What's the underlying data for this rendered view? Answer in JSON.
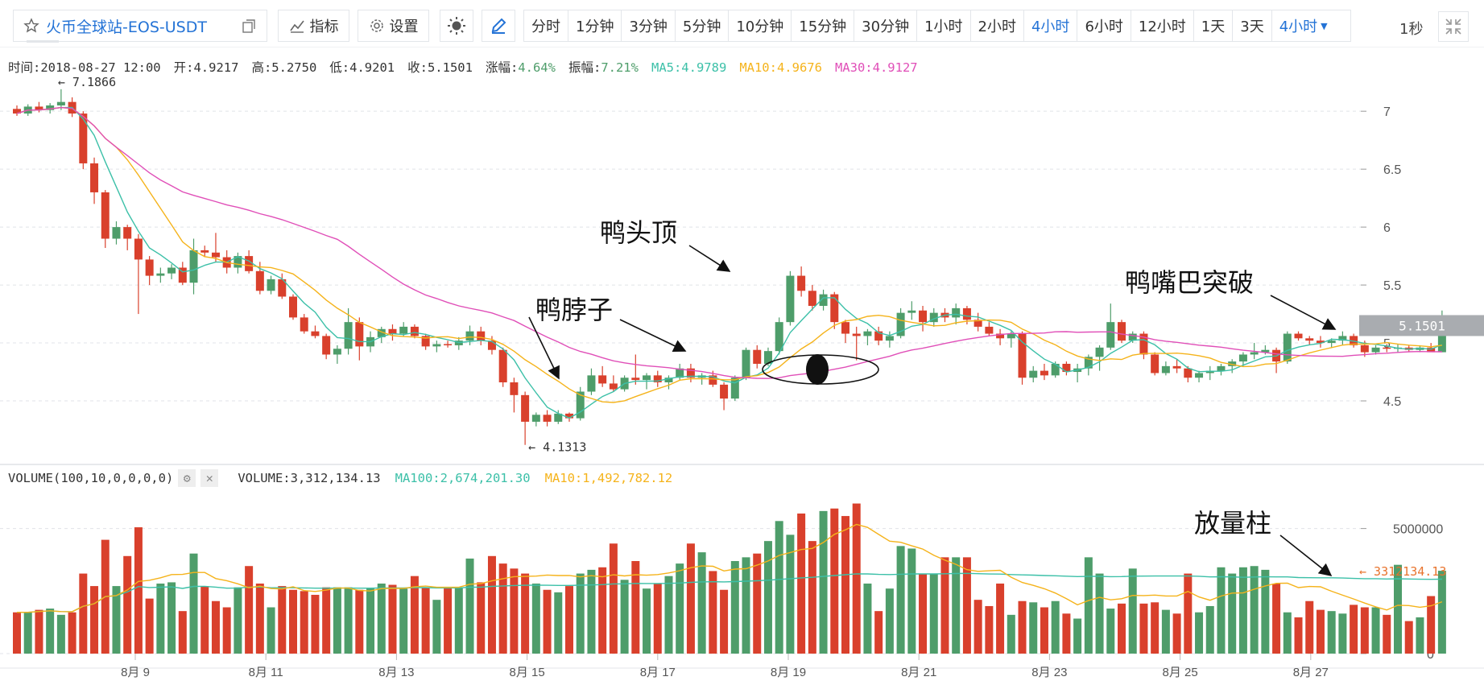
{
  "toolbar": {
    "symbol": "火币全球站-EOS-USDT",
    "indicator_label": "指标",
    "settings_label": "设置",
    "periods": [
      "分时",
      "1分钟",
      "3分钟",
      "5分钟",
      "10分钟",
      "15分钟",
      "30分钟",
      "1小时",
      "2小时",
      "4小时",
      "6小时",
      "12小时",
      "1天",
      "3天"
    ],
    "active_period": "4小时",
    "dropdown_label": "4小时",
    "refresh": "1秒"
  },
  "info": {
    "time": "时间:2018-08-27 12:00",
    "open": "开:4.9217",
    "high": "高:5.2750",
    "low": "低:4.9201",
    "close": "收:5.1501",
    "change_label": "涨幅:",
    "change_value": "4.64%",
    "amp_label": "振幅:",
    "amp_value": "7.21%",
    "ma5": "MA5:4.9789",
    "ma10": "MA10:4.9676",
    "ma30": "MA30:4.9127"
  },
  "volume_info": {
    "title": "VOLUME(100,10,0,0,0,0)",
    "volume": "VOLUME:3,312,134.13",
    "ma100": "MA100:2,674,201.30",
    "ma10": "MA10:1,492,782.12"
  },
  "colors": {
    "up": "#4e9d6a",
    "down": "#d9402c",
    "ma5": "#3cc0a8",
    "ma10": "#f5b31b",
    "ma30": "#e04fb8",
    "vma100": "#3cc0a8",
    "vma10": "#f5b31b",
    "accent": "#2473d6"
  },
  "chart_data": {
    "type": "candlestick",
    "price_axis": {
      "ticks": [
        "7",
        "6.5",
        "6",
        "5.5",
        "5",
        "4.5"
      ],
      "range": [
        4.0,
        7.3
      ]
    },
    "volume_axis": {
      "ticks": [
        "5000000",
        "0"
      ],
      "range": [
        0,
        6500000
      ]
    },
    "x_tick_labels": [
      "8月 9",
      "8月 11",
      "8月 13",
      "8月 15",
      "8月 17",
      "8月 19",
      "8月 21",
      "8月 23",
      "8月 25",
      "8月 27"
    ],
    "high_marker": "← 7.1866",
    "low_marker": "← 4.1313",
    "last_price": "5.1501",
    "last_volume": "← 3312134.13",
    "annotations": [
      "鸭头顶",
      "鸭脖子",
      "鸭嘴巴突破",
      "放量柱"
    ],
    "ohlc": [
      [
        7.02,
        7.05,
        6.96,
        6.98
      ],
      [
        6.98,
        7.06,
        6.96,
        7.04
      ],
      [
        7.04,
        7.08,
        6.99,
        7.01
      ],
      [
        7.01,
        7.07,
        6.98,
        7.05
      ],
      [
        7.05,
        7.19,
        7.01,
        7.08
      ],
      [
        7.08,
        7.12,
        6.95,
        6.98
      ],
      [
        6.98,
        7.0,
        6.5,
        6.55
      ],
      [
        6.55,
        6.6,
        6.2,
        6.3
      ],
      [
        6.3,
        6.32,
        5.82,
        5.9
      ],
      [
        5.9,
        6.05,
        5.85,
        6.0
      ],
      [
        6.0,
        6.02,
        5.8,
        5.9
      ],
      [
        5.9,
        5.94,
        5.25,
        5.72
      ],
      [
        5.72,
        5.75,
        5.5,
        5.58
      ],
      [
        5.58,
        5.65,
        5.52,
        5.6
      ],
      [
        5.6,
        5.68,
        5.55,
        5.65
      ],
      [
        5.65,
        5.7,
        5.5,
        5.52
      ],
      [
        5.52,
        5.9,
        5.42,
        5.8
      ],
      [
        5.8,
        5.84,
        5.74,
        5.78
      ],
      [
        5.78,
        5.95,
        5.7,
        5.74
      ],
      [
        5.74,
        5.8,
        5.6,
        5.65
      ],
      [
        5.65,
        5.78,
        5.6,
        5.75
      ],
      [
        5.75,
        5.8,
        5.6,
        5.62
      ],
      [
        5.62,
        5.7,
        5.42,
        5.45
      ],
      [
        5.45,
        5.58,
        5.42,
        5.55
      ],
      [
        5.55,
        5.6,
        5.38,
        5.4
      ],
      [
        5.4,
        5.42,
        5.2,
        5.22
      ],
      [
        5.22,
        5.25,
        5.08,
        5.1
      ],
      [
        5.1,
        5.15,
        5.04,
        5.06
      ],
      [
        5.06,
        5.08,
        4.86,
        4.9
      ],
      [
        4.9,
        4.98,
        4.82,
        4.95
      ],
      [
        4.95,
        5.3,
        4.9,
        5.18
      ],
      [
        5.18,
        5.22,
        4.85,
        4.97
      ],
      [
        4.97,
        5.1,
        4.92,
        5.05
      ],
      [
        5.05,
        5.14,
        5.0,
        5.12
      ],
      [
        5.12,
        5.16,
        5.02,
        5.08
      ],
      [
        5.08,
        5.18,
        5.06,
        5.14
      ],
      [
        5.14,
        5.16,
        5.04,
        5.06
      ],
      [
        5.06,
        5.08,
        4.94,
        4.97
      ],
      [
        4.97,
        5.02,
        4.92,
        4.99
      ],
      [
        4.99,
        5.02,
        4.96,
        4.98
      ],
      [
        4.98,
        5.05,
        4.94,
        5.02
      ],
      [
        5.02,
        5.15,
        4.98,
        5.1
      ],
      [
        5.1,
        5.14,
        4.98,
        5.02
      ],
      [
        5.02,
        5.06,
        4.9,
        4.94
      ],
      [
        4.94,
        4.96,
        4.62,
        4.66
      ],
      [
        4.66,
        4.7,
        4.4,
        4.55
      ],
      [
        4.55,
        4.58,
        4.12,
        4.32
      ],
      [
        4.32,
        4.4,
        4.28,
        4.38
      ],
      [
        4.38,
        4.42,
        4.28,
        4.32
      ],
      [
        4.32,
        4.42,
        4.3,
        4.39
      ],
      [
        4.39,
        4.4,
        4.32,
        4.35
      ],
      [
        4.35,
        4.62,
        4.33,
        4.58
      ],
      [
        4.58,
        4.78,
        4.55,
        4.72
      ],
      [
        4.72,
        4.8,
        4.62,
        4.65
      ],
      [
        4.65,
        4.72,
        4.58,
        4.6
      ],
      [
        4.6,
        4.72,
        4.58,
        4.7
      ],
      [
        4.7,
        4.9,
        4.64,
        4.68
      ],
      [
        4.68,
        4.74,
        4.6,
        4.72
      ],
      [
        4.72,
        4.76,
        4.62,
        4.66
      ],
      [
        4.66,
        4.72,
        4.6,
        4.7
      ],
      [
        4.7,
        4.82,
        4.68,
        4.78
      ],
      [
        4.78,
        4.82,
        4.66,
        4.7
      ],
      [
        4.7,
        4.74,
        4.64,
        4.72
      ],
      [
        4.72,
        4.76,
        4.62,
        4.64
      ],
      [
        4.64,
        4.66,
        4.42,
        4.52
      ],
      [
        4.52,
        4.72,
        4.5,
        4.7
      ],
      [
        4.7,
        4.96,
        4.68,
        4.94
      ],
      [
        4.94,
        4.98,
        4.78,
        4.82
      ],
      [
        4.82,
        4.96,
        4.8,
        4.93
      ],
      [
        4.93,
        5.22,
        4.9,
        5.18
      ],
      [
        5.18,
        5.62,
        5.15,
        5.58
      ],
      [
        5.58,
        5.66,
        5.4,
        5.45
      ],
      [
        5.45,
        5.5,
        5.28,
        5.32
      ],
      [
        5.32,
        5.46,
        5.28,
        5.42
      ],
      [
        5.42,
        5.44,
        5.12,
        5.18
      ],
      [
        5.18,
        5.2,
        5.0,
        5.08
      ],
      [
        5.08,
        5.14,
        4.85,
        5.06
      ],
      [
        5.06,
        5.12,
        4.98,
        5.1
      ],
      [
        5.1,
        5.14,
        4.98,
        5.02
      ],
      [
        5.02,
        5.1,
        4.96,
        5.06
      ],
      [
        5.06,
        5.3,
        5.04,
        5.26
      ],
      [
        5.26,
        5.36,
        5.2,
        5.28
      ],
      [
        5.28,
        5.32,
        5.1,
        5.18
      ],
      [
        5.18,
        5.3,
        5.14,
        5.26
      ],
      [
        5.26,
        5.3,
        5.18,
        5.22
      ],
      [
        5.22,
        5.34,
        5.16,
        5.3
      ],
      [
        5.3,
        5.32,
        5.16,
        5.2
      ],
      [
        5.2,
        5.26,
        5.1,
        5.14
      ],
      [
        5.14,
        5.18,
        5.06,
        5.08
      ],
      [
        5.08,
        5.12,
        4.98,
        5.04
      ],
      [
        5.04,
        5.1,
        4.96,
        5.08
      ],
      [
        5.08,
        5.1,
        4.64,
        4.7
      ],
      [
        4.7,
        4.8,
        4.66,
        4.76
      ],
      [
        4.76,
        4.82,
        4.68,
        4.72
      ],
      [
        4.72,
        4.84,
        4.7,
        4.82
      ],
      [
        4.82,
        4.84,
        4.72,
        4.75
      ],
      [
        4.75,
        4.82,
        4.66,
        4.78
      ],
      [
        4.78,
        4.9,
        4.72,
        4.88
      ],
      [
        4.88,
        4.98,
        4.76,
        4.96
      ],
      [
        4.96,
        5.34,
        4.94,
        5.18
      ],
      [
        5.18,
        5.2,
        5.0,
        5.02
      ],
      [
        5.02,
        5.1,
        5.0,
        5.08
      ],
      [
        5.08,
        5.1,
        4.86,
        4.9
      ],
      [
        4.9,
        4.92,
        4.72,
        4.74
      ],
      [
        4.74,
        4.84,
        4.72,
        4.8
      ],
      [
        4.8,
        4.86,
        4.74,
        4.78
      ],
      [
        4.78,
        4.8,
        4.66,
        4.7
      ],
      [
        4.7,
        4.76,
        4.66,
        4.74
      ],
      [
        4.74,
        4.8,
        4.68,
        4.76
      ],
      [
        4.76,
        4.82,
        4.72,
        4.8
      ],
      [
        4.8,
        4.86,
        4.74,
        4.84
      ],
      [
        4.84,
        4.92,
        4.8,
        4.9
      ],
      [
        4.9,
        5.0,
        4.86,
        4.92
      ],
      [
        4.92,
        4.98,
        4.9,
        4.94
      ],
      [
        4.94,
        4.96,
        4.74,
        4.84
      ],
      [
        4.84,
        5.1,
        4.82,
        5.08
      ],
      [
        5.08,
        5.1,
        5.02,
        5.04
      ],
      [
        5.04,
        5.06,
        4.98,
        5.02
      ],
      [
        5.02,
        5.06,
        4.96,
        5.0
      ],
      [
        5.0,
        5.04,
        4.96,
        5.02
      ],
      [
        5.02,
        5.1,
        4.98,
        5.06
      ],
      [
        5.06,
        5.08,
        4.96,
        4.98
      ],
      [
        4.98,
        5.02,
        4.88,
        4.92
      ],
      [
        4.92,
        4.98,
        4.9,
        4.96
      ],
      [
        4.96,
        4.99,
        4.92,
        4.95
      ],
      [
        4.95,
        4.99,
        4.92,
        4.96
      ],
      [
        4.96,
        4.98,
        4.92,
        4.94
      ],
      [
        4.94,
        4.98,
        4.92,
        4.96
      ],
      [
        4.96,
        5.0,
        4.93,
        4.92
      ],
      [
        4.92,
        5.28,
        4.92,
        5.15
      ]
    ],
    "volume": [
      1650000,
      1650000,
      1750000,
      1800000,
      1550000,
      1650000,
      3200000,
      2700000,
      4550000,
      2700000,
      3900000,
      5050000,
      2200000,
      2800000,
      2850000,
      1700000,
      4000000,
      2700000,
      2100000,
      1850000,
      2650000,
      3500000,
      2800000,
      1850000,
      2700000,
      2550000,
      2500000,
      2350000,
      2650000,
      2650000,
      2650000,
      2550000,
      2600000,
      2800000,
      2750000,
      2600000,
      3100000,
      2650000,
      2150000,
      2650000,
      2650000,
      3800000,
      2850000,
      3900000,
      3600000,
      3400000,
      3200000,
      2800000,
      2550000,
      2450000,
      2700000,
      3200000,
      3350000,
      3450000,
      4400000,
      2950000,
      3700000,
      2600000,
      2800000,
      3100000,
      3600000,
      4400000,
      4050000,
      3300000,
      2550000,
      3700000,
      3850000,
      4000000,
      4500000,
      5300000,
      4750000,
      5600000,
      4500000,
      5700000,
      5800000,
      5500000,
      6000000,
      2800000,
      1700000,
      2600000,
      4300000,
      4200000,
      3200000,
      3200000,
      3850000,
      3850000,
      3850000,
      2150000,
      1900000,
      2800000,
      1550000,
      2100000,
      2050000,
      1850000,
      2100000,
      1600000,
      1400000,
      3850000,
      3200000,
      1800000,
      2000000,
      3400000,
      2000000,
      2050000,
      1750000,
      1600000,
      3200000,
      1650000,
      1900000,
      3450000,
      3200000,
      3450000,
      3500000,
      3350000,
      2800000,
      1650000,
      1450000,
      2100000,
      1750000,
      1700000,
      1600000,
      1950000,
      1850000,
      1850000,
      1550000,
      3550000,
      1300000,
      1450000,
      2300000,
      3312134
    ]
  }
}
